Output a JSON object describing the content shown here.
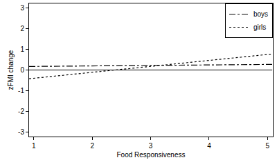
{
  "chart_data": {
    "type": "line",
    "x_label": "Food Responsiveness",
    "y_label": "zFMI change",
    "x": [
      0.92,
      5.08
    ],
    "series": [
      {
        "name": "boys",
        "color": "#000000",
        "line_style": "dashdot",
        "values": [
          0.17,
          0.27
        ]
      },
      {
        "name": "girls",
        "color": "#000000",
        "line_style": "dot",
        "values": [
          -0.42,
          0.77
        ]
      },
      {
        "color": "#000000",
        "line_style": "solid",
        "values": [
          0,
          0
        ]
      }
    ],
    "xlim": [
      0.92,
      5.09
    ],
    "ylim": [
      -3.2,
      3.2
    ],
    "xticks": [
      1,
      2,
      3,
      4,
      5
    ],
    "yticks": [
      -3,
      -2,
      -1,
      0,
      1,
      2,
      3
    ],
    "grid": false,
    "legend": "top-right"
  }
}
